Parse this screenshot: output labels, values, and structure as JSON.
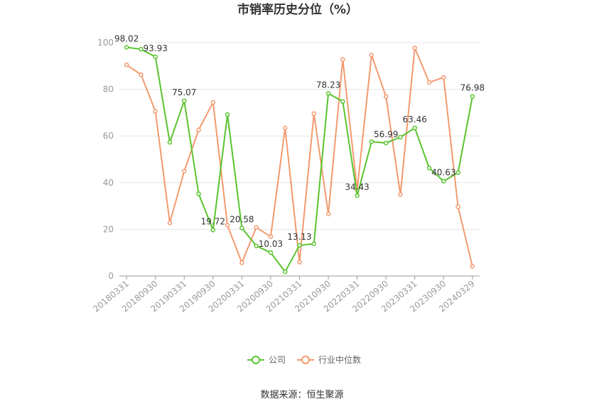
{
  "chart_data": {
    "type": "line",
    "title": "市销率历史分位（%）",
    "xlabel": "",
    "ylabel": "",
    "ylim": [
      0,
      100
    ],
    "yticks": [
      0,
      20,
      40,
      60,
      80,
      100
    ],
    "categories": [
      "20180331",
      "20180630",
      "20180930",
      "20181231",
      "20190331",
      "20190630",
      "20190930",
      "20191231",
      "20200331",
      "20200630",
      "20200930",
      "20201231",
      "20210331",
      "20210630",
      "20210930",
      "20211231",
      "20220331",
      "20220630",
      "20220930",
      "20221231",
      "20230331",
      "20230630",
      "20230930",
      "20231231",
      "20240329"
    ],
    "x_tick_labels": [
      "20180331",
      "20180930",
      "20190331",
      "20190930",
      "20200331",
      "20200930",
      "20210331",
      "20210930",
      "20220331",
      "20220930",
      "20230331",
      "20230930",
      "20240329"
    ],
    "series": [
      {
        "name": "公司",
        "color": "#5ac42f",
        "values": [
          98.02,
          97.2,
          93.93,
          57.3,
          75.07,
          35.2,
          19.72,
          69.2,
          20.58,
          12.9,
          10.03,
          1.8,
          13.13,
          13.8,
          78.23,
          74.8,
          34.43,
          57.6,
          56.99,
          59.5,
          63.46,
          46.3,
          40.63,
          44.3,
          76.98
        ],
        "labeled_values": {
          "0": "98.02",
          "2": "93.93",
          "4": "75.07",
          "6": "19.72",
          "8": "20.58",
          "10": "10.03",
          "12": "13.13",
          "14": "78.23",
          "16": "34.43",
          "18": "56.99",
          "20": "63.46",
          "22": "40.63",
          "24": "76.98"
        }
      },
      {
        "name": "行业中位数",
        "color": "#f39a6e",
        "values": [
          90.5,
          86.3,
          70.6,
          22.8,
          44.9,
          62.6,
          74.4,
          21.7,
          5.7,
          20.8,
          16.9,
          63.4,
          5.9,
          69.6,
          26.6,
          92.8,
          36.9,
          94.7,
          76.9,
          34.9,
          97.7,
          83.0,
          85.1,
          29.7,
          4.1
        ]
      }
    ],
    "grid": true,
    "legend_position": "bottom-center"
  },
  "footer": {
    "source": "数据来源：恒生聚源"
  }
}
